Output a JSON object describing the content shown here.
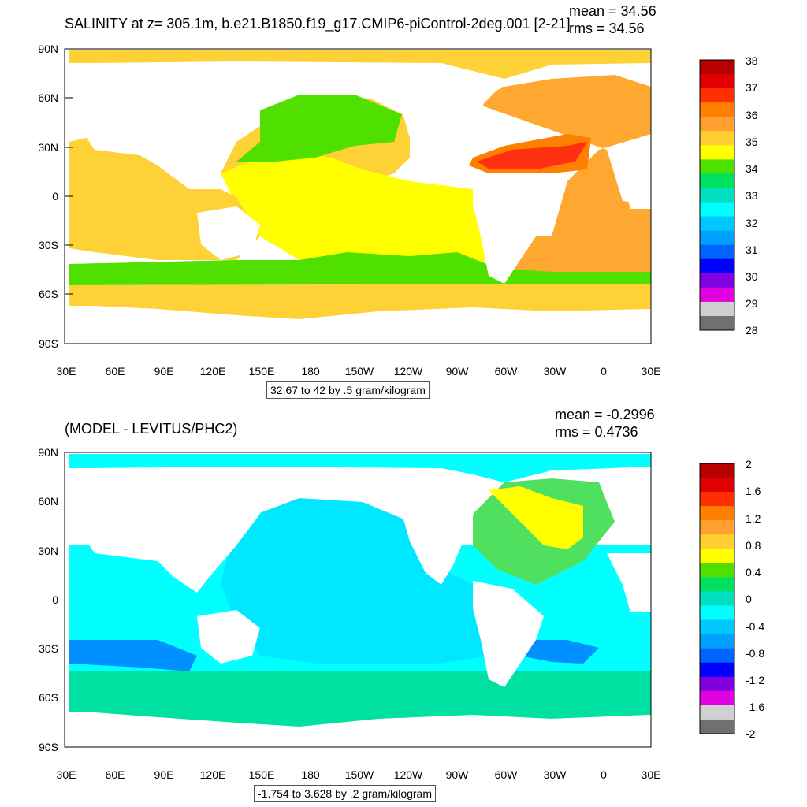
{
  "top": {
    "title": "SALINITY at z= 305.1m, b.e21.B1850.f19_g17.CMIP6-piControl-2deg.001 [2-21]",
    "mean": "mean = 34.56",
    "rms": "rms = 34.56",
    "contour_note": "32.67 to 42 by .5 gram/kilogram",
    "colorbar_labels": [
      "38",
      "37",
      "36",
      "35",
      "34",
      "33",
      "32",
      "31",
      "30",
      "29",
      "28"
    ],
    "colorbar_colors": [
      "#b80000",
      "#e00000",
      "#ff3000",
      "#ff8000",
      "#ffa030",
      "#ffd030",
      "#ffff00",
      "#50e000",
      "#00e060",
      "#00e0c0",
      "#00ffff",
      "#00c8ff",
      "#00a0ff",
      "#0064ff",
      "#0000ff",
      "#8000e0",
      "#e000e0",
      "#d0d0d0",
      "#707070"
    ]
  },
  "bottom": {
    "title": "(MODEL - LEVITUS/PHC2)",
    "mean": "mean = -0.2996",
    "rms": "rms = 0.4736",
    "contour_note": "-1.754 to 3.628 by .2 gram/kilogram",
    "colorbar_labels": [
      "2",
      "1.6",
      "1.2",
      "0.8",
      "0.4",
      "0",
      "-0.4",
      "-0.8",
      "-1.2",
      "-1.6",
      "-2"
    ],
    "colorbar_colors": [
      "#b80000",
      "#e00000",
      "#ff3000",
      "#ff8000",
      "#ffa030",
      "#ffd030",
      "#ffff00",
      "#50e000",
      "#00e060",
      "#00e0c0",
      "#00ffff",
      "#00c8ff",
      "#00a0ff",
      "#0064ff",
      "#0000ff",
      "#8000e0",
      "#e000e0",
      "#d0d0d0",
      "#707070"
    ]
  },
  "axes": {
    "lat_labels": [
      "90N",
      "60N",
      "30N",
      "0",
      "30S",
      "60S",
      "90S"
    ],
    "lon_labels": [
      "30E",
      "60E",
      "90E",
      "120E",
      "150E",
      "180",
      "150W",
      "120W",
      "90W",
      "60W",
      "30W",
      "0",
      "30E"
    ]
  },
  "chart_data": [
    {
      "type": "heatmap",
      "title": "SALINITY at z= 305.1m, b.e21.B1850.f19_g17.CMIP6-piControl-2deg.001 [2-21]",
      "units": "gram/kilogram",
      "contour_levels": "32.67 to 42 by .5",
      "mean": 34.56,
      "rms": 34.56,
      "x_ticks": [
        "30E",
        "60E",
        "90E",
        "120E",
        "150E",
        "180",
        "150W",
        "120W",
        "90W",
        "60W",
        "30W",
        "0",
        "30E"
      ],
      "y_ticks": [
        "90N",
        "60N",
        "30N",
        "0",
        "30S",
        "60S",
        "90S"
      ],
      "colorbar_ticks": [
        38,
        37,
        36,
        35,
        34,
        33,
        32,
        31,
        30,
        29,
        28
      ]
    },
    {
      "type": "heatmap",
      "title": "(MODEL - LEVITUS/PHC2)",
      "units": "gram/kilogram",
      "contour_levels": "-1.754 to 3.628 by .2",
      "mean": -0.2996,
      "rms": 0.4736,
      "x_ticks": [
        "30E",
        "60E",
        "90E",
        "120E",
        "150E",
        "180",
        "150W",
        "120W",
        "90W",
        "60W",
        "30W",
        "0",
        "30E"
      ],
      "y_ticks": [
        "90N",
        "60N",
        "30N",
        "0",
        "30S",
        "60S",
        "90S"
      ],
      "colorbar_ticks": [
        2,
        1.6,
        1.2,
        0.8,
        0.4,
        0,
        -0.4,
        -0.8,
        -1.2,
        -1.6,
        -2
      ]
    }
  ]
}
